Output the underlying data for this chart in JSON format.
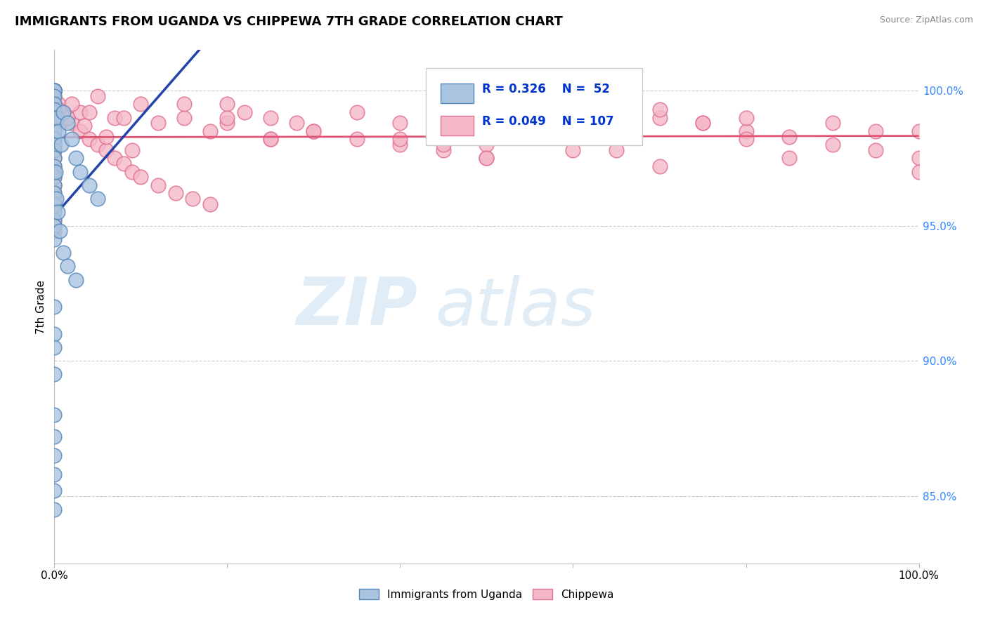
{
  "title": "IMMIGRANTS FROM UGANDA VS CHIPPEWA 7TH GRADE CORRELATION CHART",
  "source": "Source: ZipAtlas.com",
  "ylabel": "7th Grade",
  "yticks": [
    85.0,
    90.0,
    95.0,
    100.0
  ],
  "ytick_labels": [
    "85.0%",
    "90.0%",
    "95.0%",
    "100.0%"
  ],
  "blue_R": 0.326,
  "blue_N": 52,
  "pink_R": 0.049,
  "pink_N": 107,
  "blue_color": "#aac4e0",
  "blue_edge": "#5588bb",
  "pink_color": "#f5b8c8",
  "pink_edge": "#e07090",
  "blue_line_color": "#2244aa",
  "pink_line_color": "#e05575",
  "watermark_zip": "ZIP",
  "watermark_atlas": "atlas",
  "legend_R_color": "#0033cc",
  "ymin": 82.5,
  "ymax": 101.5,
  "xmin": 0.0,
  "xmax": 100.0,
  "blue_x": [
    0.0,
    0.0,
    0.0,
    0.0,
    0.0,
    0.0,
    0.0,
    0.0,
    0.0,
    0.0,
    0.0,
    0.0,
    0.0,
    0.0,
    0.0,
    0.0,
    0.0,
    0.0,
    0.0,
    0.0,
    0.3,
    0.5,
    0.8,
    1.0,
    1.5,
    2.0,
    2.5,
    3.0,
    4.0,
    5.0,
    0.0,
    0.0,
    0.0,
    0.0,
    0.0,
    0.1,
    0.2,
    0.4,
    0.6,
    1.0,
    1.5,
    2.5,
    0.0,
    0.0,
    0.0,
    0.0,
    0.0,
    0.0,
    0.0,
    0.0,
    0.0,
    0.0
  ],
  "blue_y": [
    100.0,
    100.0,
    100.0,
    100.0,
    100.0,
    99.8,
    99.5,
    99.3,
    99.0,
    98.8,
    98.5,
    98.2,
    98.0,
    97.8,
    97.5,
    97.2,
    97.0,
    96.8,
    96.5,
    96.2,
    99.0,
    98.5,
    98.0,
    99.2,
    98.8,
    98.2,
    97.5,
    97.0,
    96.5,
    96.0,
    95.8,
    95.5,
    95.2,
    95.0,
    94.5,
    97.0,
    96.0,
    95.5,
    94.8,
    94.0,
    93.5,
    93.0,
    92.0,
    91.0,
    90.5,
    89.5,
    88.0,
    87.2,
    86.5,
    85.8,
    85.2,
    84.5
  ],
  "pink_x": [
    0.0,
    0.0,
    0.0,
    0.0,
    0.0,
    0.0,
    0.0,
    0.0,
    0.0,
    0.0,
    0.0,
    0.0,
    0.0,
    0.0,
    0.0,
    0.0,
    0.0,
    0.0,
    0.0,
    0.0,
    0.5,
    1.0,
    2.0,
    3.0,
    4.0,
    5.0,
    6.0,
    7.0,
    8.0,
    9.0,
    10.0,
    12.0,
    14.0,
    16.0,
    18.0,
    20.0,
    22.0,
    25.0,
    28.0,
    30.0,
    35.0,
    40.0,
    45.0,
    50.0,
    55.0,
    60.0,
    65.0,
    70.0,
    75.0,
    80.0,
    85.0,
    90.0,
    95.0,
    100.0,
    15.0,
    20.0,
    30.0,
    40.0,
    50.0,
    60.0,
    70.0,
    80.0,
    90.0,
    100.0,
    25.0,
    45.0,
    65.0,
    85.0,
    10.0,
    35.0,
    55.0,
    75.0,
    95.0,
    5.0,
    15.0,
    3.0,
    7.0,
    12.0,
    18.0,
    25.0,
    0.0,
    0.0,
    0.0,
    0.0,
    0.0,
    0.0,
    0.0,
    0.0,
    0.0,
    0.0,
    0.0,
    2.0,
    4.0,
    8.0,
    50.0,
    70.0,
    20.0,
    40.0,
    60.0,
    80.0,
    0.0,
    100.0,
    0.5,
    1.5,
    3.5,
    6.0,
    9.0
  ],
  "pink_y": [
    100.0,
    100.0,
    100.0,
    100.0,
    100.0,
    100.0,
    100.0,
    99.8,
    99.7,
    99.5,
    99.4,
    99.2,
    99.0,
    98.9,
    98.7,
    98.5,
    98.3,
    98.2,
    98.0,
    97.8,
    99.5,
    99.2,
    98.8,
    98.5,
    98.2,
    98.0,
    97.8,
    97.5,
    97.3,
    97.0,
    96.8,
    96.5,
    96.2,
    96.0,
    95.8,
    99.5,
    99.2,
    99.0,
    98.8,
    98.5,
    98.2,
    98.0,
    97.8,
    97.5,
    99.8,
    99.5,
    99.2,
    99.0,
    98.8,
    98.5,
    98.3,
    98.0,
    97.8,
    97.5,
    99.0,
    98.8,
    98.5,
    98.2,
    98.0,
    97.8,
    99.3,
    99.0,
    98.8,
    98.5,
    98.2,
    98.0,
    97.8,
    97.5,
    99.5,
    99.2,
    99.0,
    98.8,
    98.5,
    99.8,
    99.5,
    99.2,
    99.0,
    98.8,
    98.5,
    98.2,
    97.5,
    97.2,
    97.0,
    96.8,
    96.5,
    96.2,
    96.0,
    95.8,
    95.5,
    95.2,
    95.0,
    99.5,
    99.2,
    99.0,
    97.5,
    97.2,
    99.0,
    98.8,
    98.5,
    98.2,
    94.8,
    97.0,
    99.3,
    99.0,
    98.7,
    98.3,
    97.8
  ]
}
